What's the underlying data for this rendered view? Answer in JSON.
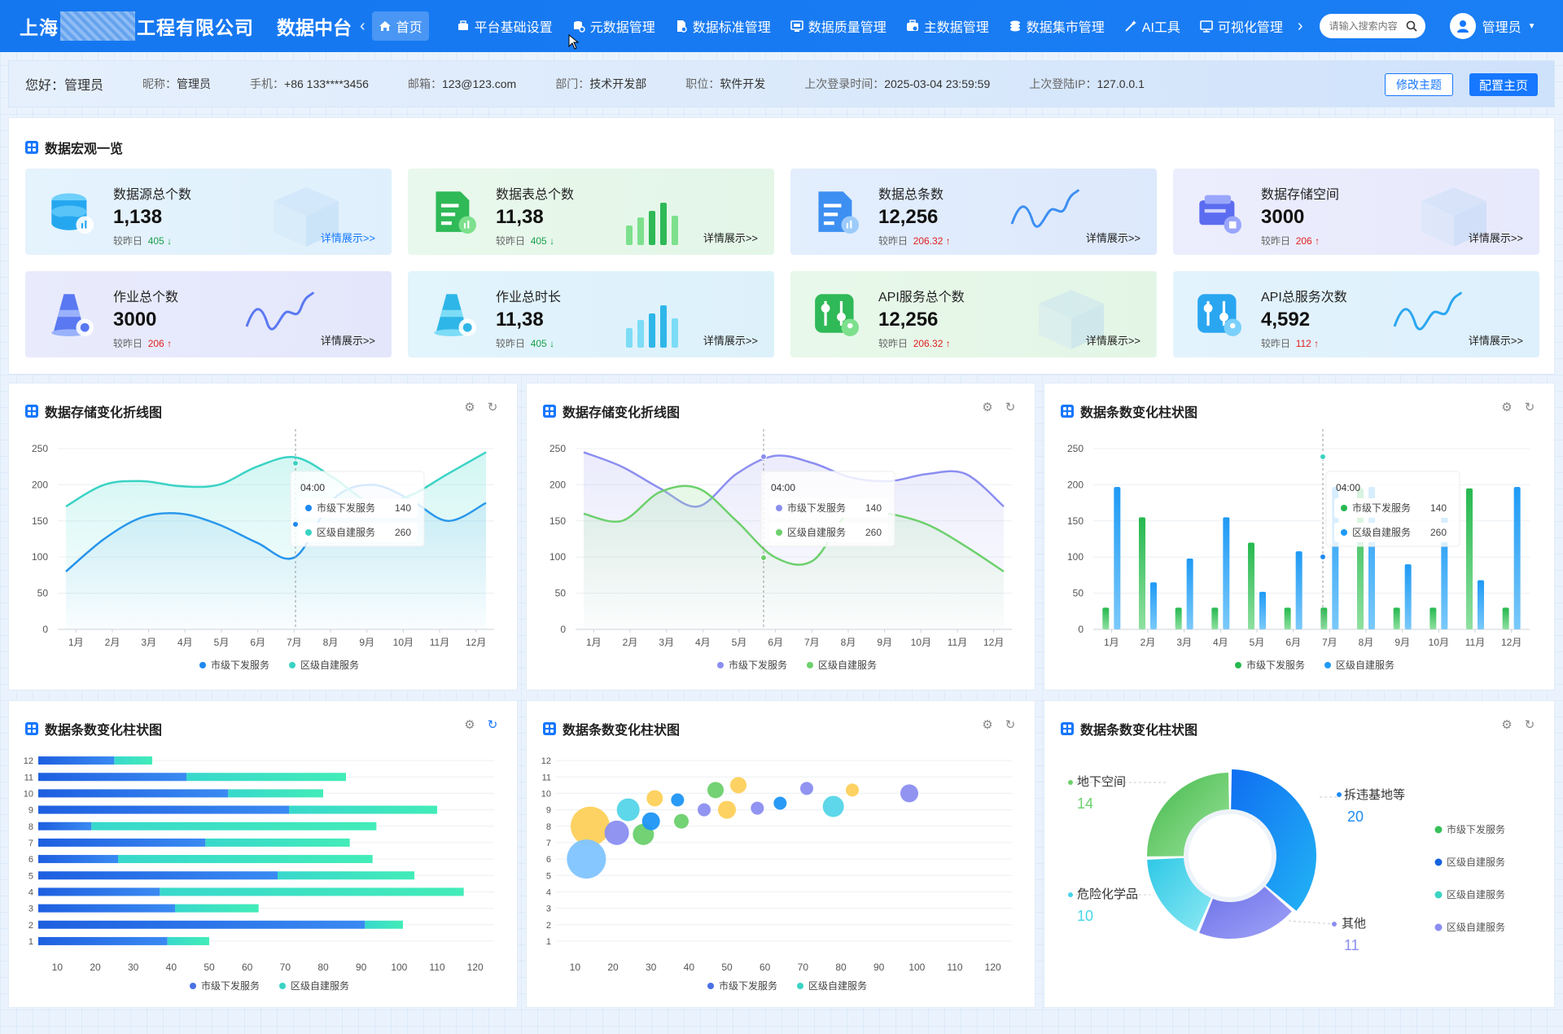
{
  "header": {
    "company_prefix": "上海",
    "company_suffix": "工程有限公司",
    "platform": "数据中台",
    "home": "首页",
    "nav": [
      {
        "label": "平台基础设置",
        "icon": "toolbox-icon"
      },
      {
        "label": "元数据管理",
        "icon": "database-gear-icon"
      },
      {
        "label": "数据标准管理",
        "icon": "document-icon"
      },
      {
        "label": "数据质量管理",
        "icon": "monitor-icon"
      },
      {
        "label": "主数据管理",
        "icon": "briefcase-icon"
      },
      {
        "label": "数据集市管理",
        "icon": "stack-icon"
      },
      {
        "label": "AI工具",
        "icon": "magic-wand-icon"
      },
      {
        "label": "可视化管理",
        "icon": "screen-icon"
      }
    ],
    "search_placeholder": "请输入搜索内容",
    "user": "管理员"
  },
  "info": {
    "greeting": "您好：管理员",
    "fields": [
      {
        "k": "昵称：",
        "v": "管理员"
      },
      {
        "k": "手机：",
        "v": "+86 133****3456"
      },
      {
        "k": "邮箱：",
        "v": "123@123.com"
      },
      {
        "k": "部门：",
        "v": "技术开发部"
      },
      {
        "k": "职位：",
        "v": "软件开发"
      },
      {
        "k": "上次登录时间：",
        "v": "2025-03-04    23:59:59"
      },
      {
        "k": "上次登陆IP：",
        "v": "127.0.0.1"
      }
    ],
    "btn_theme": "修改主题",
    "btn_home": "配置主页"
  },
  "overview": {
    "title": "数据宏观一览",
    "compare_label": "较昨日",
    "more": "详情展示>>",
    "cards": [
      {
        "title": "数据源总个数",
        "value": "1,138",
        "delta": "405",
        "dir": "down"
      },
      {
        "title": "数据表总个数",
        "value": "11,38",
        "delta": "405",
        "dir": "down"
      },
      {
        "title": "数据总条数",
        "value": "12,256",
        "delta": "206.32",
        "dir": "up"
      },
      {
        "title": "数据存储空间",
        "value": "3000",
        "delta": "206",
        "dir": "up"
      },
      {
        "title": "作业总个数",
        "value": "3000",
        "delta": "206",
        "dir": "up"
      },
      {
        "title": "作业总时长",
        "value": "11,38",
        "delta": "405",
        "dir": "down"
      },
      {
        "title": "API服务总个数",
        "value": "12,256",
        "delta": "206.32",
        "dir": "up"
      },
      {
        "title": "API总服务次数",
        "value": "4,592",
        "delta": "112",
        "dir": "up"
      }
    ]
  },
  "colors": {
    "primary": "#1677ff",
    "teal": "#3ad3c4",
    "green": "#37c05a",
    "purple": "#8b8ef0",
    "up": "#e02020",
    "down": "#1aa04a"
  },
  "chart_data": [
    {
      "type": "area",
      "title": "数据存储变化折线图",
      "categories": [
        "1月",
        "2月",
        "3月",
        "4月",
        "5月",
        "6月",
        "7月",
        "8月",
        "9月",
        "10月",
        "11月",
        "12月"
      ],
      "ylim": [
        0,
        250
      ],
      "yticks": [
        0,
        50,
        100,
        150,
        200,
        250
      ],
      "series": [
        {
          "name": "市级下发服务",
          "values": [
            80,
            125,
            155,
            160,
            145,
            120,
            100,
            180,
            200,
            180,
            150,
            175
          ]
        },
        {
          "name": "区级自建服务",
          "values": [
            170,
            200,
            205,
            198,
            200,
            225,
            238,
            210,
            175,
            185,
            215,
            245
          ]
        }
      ],
      "tooltip": {
        "x": "04:00",
        "rows": [
          [
            "市级下发服务",
            "140"
          ],
          [
            "区级自建服务",
            "260"
          ]
        ]
      }
    },
    {
      "type": "area",
      "title": "数据存储变化折线图",
      "categories": [
        "1月",
        "2月",
        "3月",
        "4月",
        "5月",
        "6月",
        "7月",
        "8月",
        "9月",
        "10月",
        "11月",
        "12月"
      ],
      "ylim": [
        0,
        250
      ],
      "yticks": [
        0,
        50,
        100,
        150,
        200,
        250
      ],
      "series": [
        {
          "name": "市级下发服务",
          "values": [
            245,
            225,
            195,
            170,
            215,
            240,
            230,
            210,
            205,
            215,
            215,
            170
          ]
        },
        {
          "name": "区级自建服务",
          "values": [
            160,
            150,
            190,
            195,
            150,
            100,
            95,
            165,
            160,
            145,
            115,
            80
          ]
        }
      ],
      "tooltip": {
        "x": "04:00",
        "rows": [
          [
            "市级下发服务",
            "140"
          ],
          [
            "区级自建服务",
            "260"
          ]
        ]
      }
    },
    {
      "type": "bar",
      "title": "数据条数变化柱状图",
      "categories": [
        "1月",
        "2月",
        "3月",
        "4月",
        "5月",
        "6月",
        "7月",
        "8月",
        "9月",
        "10月",
        "11月",
        "12月"
      ],
      "ylim": [
        0,
        250
      ],
      "yticks": [
        0,
        50,
        100,
        150,
        200,
        250
      ],
      "series": [
        {
          "name": "市级下发服务",
          "values": [
            30,
            155,
            30,
            30,
            120,
            30,
            30,
            195,
            30,
            30,
            195,
            30
          ]
        },
        {
          "name": "区级自建服务",
          "values": [
            197,
            65,
            98,
            155,
            52,
            108,
            197,
            197,
            90,
            155,
            68,
            197
          ]
        }
      ],
      "tooltip": {
        "x": "04:00",
        "rows": [
          [
            "市级下发服务",
            "140"
          ],
          [
            "区级自建服务",
            "260"
          ]
        ]
      }
    },
    {
      "type": "bar",
      "orientation": "horizontal",
      "stacked": true,
      "title": "数据条数变化柱状图",
      "categories": [
        "1",
        "2",
        "3",
        "4",
        "5",
        "6",
        "7",
        "8",
        "9",
        "10",
        "11",
        "12"
      ],
      "xlim": [
        5,
        125
      ],
      "xticks": [
        10,
        20,
        30,
        40,
        50,
        60,
        70,
        80,
        90,
        100,
        110,
        120
      ],
      "series": [
        {
          "name": "市级下发服务",
          "values": [
            34,
            86,
            36,
            32,
            63,
            21,
            44,
            14,
            66,
            50,
            39,
            20
          ]
        },
        {
          "name": "区级自建服务",
          "values": [
            11,
            10,
            22,
            80,
            36,
            67,
            38,
            75,
            39,
            25,
            42,
            10
          ]
        }
      ]
    },
    {
      "type": "scatter",
      "title": "数据条数变化柱状图",
      "xlim": [
        5,
        125
      ],
      "xticks": [
        10,
        20,
        30,
        40,
        50,
        60,
        70,
        80,
        90,
        100,
        110,
        120
      ],
      "ylim": [
        0.5,
        12.5
      ],
      "yticks": [
        1,
        2,
        3,
        4,
        5,
        6,
        7,
        8,
        9,
        10,
        11,
        12
      ],
      "points": [
        {
          "x": 14,
          "y": 8.0,
          "r": 24,
          "c": "#fdd05a"
        },
        {
          "x": 13,
          "y": 6.0,
          "r": 24,
          "c": "#7fc4ff"
        },
        {
          "x": 21,
          "y": 7.6,
          "r": 15,
          "c": "#8b8ef0"
        },
        {
          "x": 28,
          "y": 7.5,
          "r": 13,
          "c": "#6bd06b"
        },
        {
          "x": 24,
          "y": 9.0,
          "r": 14,
          "c": "#54d5e8"
        },
        {
          "x": 30,
          "y": 8.3,
          "r": 11,
          "c": "#1e95f5"
        },
        {
          "x": 31,
          "y": 9.7,
          "r": 10,
          "c": "#fdd05a"
        },
        {
          "x": 38,
          "y": 8.3,
          "r": 9,
          "c": "#6bd06b"
        },
        {
          "x": 37,
          "y": 9.6,
          "r": 8,
          "c": "#1e95f5"
        },
        {
          "x": 44,
          "y": 9.0,
          "r": 8,
          "c": "#8b8ef0"
        },
        {
          "x": 47,
          "y": 10.2,
          "r": 10,
          "c": "#6bd06b"
        },
        {
          "x": 50,
          "y": 9.0,
          "r": 11,
          "c": "#fdd05a"
        },
        {
          "x": 53,
          "y": 10.5,
          "r": 10,
          "c": "#fdd05a"
        },
        {
          "x": 58,
          "y": 9.1,
          "r": 8,
          "c": "#8b8ef0"
        },
        {
          "x": 64,
          "y": 9.4,
          "r": 8,
          "c": "#1e95f5"
        },
        {
          "x": 71,
          "y": 10.3,
          "r": 8,
          "c": "#8b8ef0"
        },
        {
          "x": 78,
          "y": 9.2,
          "r": 13,
          "c": "#54d5e8"
        },
        {
          "x": 83,
          "y": 10.2,
          "r": 8,
          "c": "#fdd05a"
        },
        {
          "x": 98,
          "y": 10.0,
          "r": 11,
          "c": "#8b8ef0"
        }
      ]
    },
    {
      "type": "pie",
      "title": "数据条数变化柱状图",
      "slices": [
        {
          "label": "拆违基地等",
          "value": 20,
          "c": "#1e8cf5"
        },
        {
          "label": "其他",
          "value": 11,
          "c": "#8b8ef0"
        },
        {
          "label": "危险化学品",
          "value": 10,
          "c": "#46d6e8"
        },
        {
          "label": "地下空间",
          "value": 14,
          "c": "#6dd06d"
        }
      ],
      "legend": [
        {
          "name": "市级下发服务",
          "c": "#37c05a"
        },
        {
          "name": "区级自建服务",
          "c": "#1664e0"
        },
        {
          "name": "区级自建服务",
          "c": "#3ad3c4"
        },
        {
          "name": "区级自建服务",
          "c": "#8b8ef0"
        }
      ]
    }
  ]
}
